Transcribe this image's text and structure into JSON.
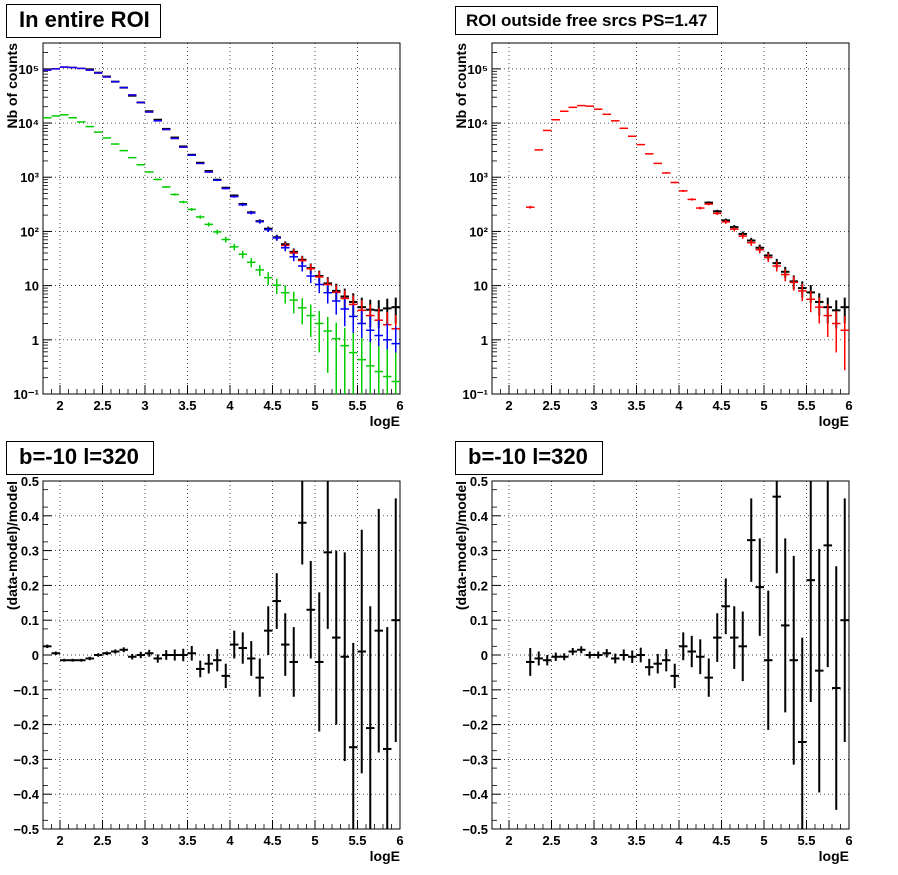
{
  "colors": {
    "data": "#000000",
    "model": "#ff0000",
    "blue": "#0000ff",
    "green": "#00cc00",
    "grid": "#000000",
    "background": "#ffffff"
  },
  "chart_data": [
    {
      "type": "scatter",
      "title": "In entire ROI",
      "xlabel": "logE",
      "ylabel": "Nb of counts",
      "xlim": [
        1.8,
        6.0
      ],
      "ylim": [
        0.1,
        300000
      ],
      "yscale": "log",
      "grid": true,
      "xticks": [
        "2",
        "2.5",
        "3",
        "3.5",
        "4",
        "4.5",
        "5",
        "5.5",
        "6"
      ],
      "yticks": [
        "10⁻¹",
        "1",
        "10",
        "10²",
        "10³",
        "10⁴",
        "10⁵"
      ],
      "x": [
        1.85,
        1.95,
        2.05,
        2.15,
        2.25,
        2.35,
        2.45,
        2.55,
        2.65,
        2.75,
        2.85,
        2.95,
        3.05,
        3.15,
        3.25,
        3.35,
        3.45,
        3.55,
        3.65,
        3.75,
        3.85,
        3.95,
        4.05,
        4.15,
        4.25,
        4.35,
        4.45,
        4.55,
        4.65,
        4.75,
        4.85,
        4.95,
        5.05,
        5.15,
        5.25,
        5.35,
        5.45,
        5.55,
        5.65,
        5.75,
        5.85,
        5.95
      ],
      "series": [
        {
          "values": [
            null,
            null,
            null,
            null,
            null,
            98000,
            85000,
            72000,
            58000,
            45000,
            32000,
            24000,
            16500,
            11500,
            7800,
            5400,
            3700,
            2600,
            1850,
            1300,
            900,
            640,
            460,
            320,
            225,
            155,
            112,
            78,
            58,
            42,
            30,
            21,
            15,
            11,
            8,
            6.3,
            5,
            4,
            3.6,
            3.5,
            3.8,
            4
          ]
        },
        {
          "values": [
            95000,
            100000,
            108000,
            106000,
            102000,
            95000,
            84000,
            71000,
            58000,
            45000,
            33000,
            24000,
            16000,
            11000,
            7600,
            5200,
            3600,
            2550,
            1800,
            1250,
            880,
            620,
            440,
            310,
            220,
            152,
            108,
            76,
            55,
            40,
            29,
            20.5,
            14.5,
            10.5,
            7.5,
            5.8,
            4.5,
            3.5,
            2.8,
            2.3,
            1.9,
            1.6
          ]
        },
        {
          "values": [
            95000,
            100000,
            108000,
            106000,
            102000,
            95000,
            84000,
            71000,
            58000,
            45000,
            33000,
            24000,
            16000,
            11000,
            7600,
            5200,
            3600,
            2550,
            1800,
            1250,
            880,
            620,
            440,
            310,
            220,
            152,
            108,
            76,
            50,
            34,
            23,
            15,
            10.5,
            7.4,
            5.2,
            3.7,
            2.7,
            2.0,
            1.5,
            1.2,
            1.0,
            0.85
          ]
        },
        {
          "values": [
            12500,
            13500,
            14200,
            12500,
            10500,
            8600,
            6800,
            5300,
            4100,
            3100,
            2300,
            1700,
            1250,
            910,
            660,
            480,
            350,
            255,
            185,
            135,
            98,
            71,
            52,
            38,
            27,
            19.5,
            14,
            10.2,
            7.4,
            5.4,
            3.9,
            2.8,
            2.0,
            1.45,
            1.05,
            0.78,
            0.58,
            0.43,
            0.33,
            0.26,
            0.21,
            0.17
          ]
        }
      ]
    },
    {
      "type": "scatter",
      "title": "ROI outside free srcs PS=1.47",
      "xlabel": "logE",
      "ylabel": "Nb of counts",
      "xlim": [
        1.8,
        6.0
      ],
      "ylim": [
        0.1,
        300000
      ],
      "yscale": "log",
      "grid": true,
      "xticks": [
        "2",
        "2.5",
        "3",
        "3.5",
        "4",
        "4.5",
        "5",
        "5.5",
        "6"
      ],
      "yticks": [
        "10⁻¹",
        "1",
        "10",
        "10²",
        "10³",
        "10⁴",
        "10⁵"
      ],
      "x": [
        2.25,
        2.35,
        2.45,
        2.55,
        2.65,
        2.75,
        2.85,
        2.95,
        3.05,
        3.15,
        3.25,
        3.35,
        3.45,
        3.55,
        3.65,
        3.75,
        3.85,
        3.95,
        4.05,
        4.15,
        4.25,
        4.35,
        4.45,
        4.55,
        4.65,
        4.75,
        4.85,
        4.95,
        5.05,
        5.15,
        5.25,
        5.35,
        5.45,
        5.55,
        5.65,
        5.75,
        5.85,
        5.95
      ],
      "series": [
        {
          "values": [
            null,
            null,
            null,
            null,
            null,
            null,
            null,
            null,
            null,
            null,
            null,
            null,
            null,
            null,
            null,
            null,
            null,
            null,
            null,
            null,
            null,
            340,
            235,
            160,
            120,
            90,
            68,
            50,
            36,
            26,
            18,
            12,
            9,
            7.5,
            5,
            4,
            3.5,
            4
          ]
        },
        {
          "values": [
            280,
            3200,
            7300,
            11500,
            16500,
            19500,
            21000,
            20500,
            18000,
            14500,
            11000,
            8000,
            5700,
            4000,
            2700,
            1800,
            1200,
            800,
            560,
            390,
            270,
            320,
            215,
            150,
            110,
            82,
            62,
            46,
            33,
            23,
            16,
            11.5,
            8,
            5.6,
            4,
            2.8,
            2,
            1.5
          ]
        }
      ]
    },
    {
      "type": "scatter",
      "title": "b=-10 l=320",
      "xlabel": "logE",
      "ylabel": "(data-model)/model",
      "xlim": [
        1.8,
        6.0
      ],
      "ylim": [
        -0.5,
        0.5
      ],
      "grid": true,
      "xticks": [
        "2",
        "2.5",
        "3",
        "3.5",
        "4",
        "4.5",
        "5",
        "5.5",
        "6"
      ],
      "yticks": [
        "−0.5",
        "−0.4",
        "−0.3",
        "−0.2",
        "−0.1",
        "0",
        "0.1",
        "0.2",
        "0.3",
        "0.4",
        "0.5"
      ],
      "x": [
        1.85,
        1.95,
        2.05,
        2.15,
        2.25,
        2.35,
        2.45,
        2.55,
        2.65,
        2.75,
        2.85,
        2.95,
        3.05,
        3.15,
        3.25,
        3.35,
        3.45,
        3.55,
        3.65,
        3.75,
        3.85,
        3.95,
        4.05,
        4.15,
        4.25,
        4.35,
        4.45,
        4.55,
        4.65,
        4.75,
        4.85,
        4.95,
        5.05,
        5.15,
        5.25,
        5.35,
        5.45,
        5.55,
        5.65,
        5.75,
        5.85,
        5.95
      ],
      "series": [
        {
          "values": [
            0.025,
            0.005,
            -0.015,
            -0.015,
            -0.015,
            -0.01,
            0.0,
            0.005,
            0.01,
            0.015,
            -0.005,
            0.0,
            0.005,
            -0.01,
            0.0,
            0.0,
            0.0,
            0.005,
            -0.04,
            -0.025,
            -0.015,
            -0.06,
            0.03,
            0.02,
            -0.01,
            -0.065,
            0.07,
            0.155,
            0.03,
            -0.02,
            0.38,
            0.13,
            -0.02,
            0.295,
            0.05,
            -0.005,
            -0.265,
            0.01,
            -0.21,
            0.07,
            -0.27,
            0.1
          ],
          "errors": [
            0.005,
            0.005,
            0.004,
            0.004,
            0.004,
            0.005,
            0.005,
            0.005,
            0.006,
            0.007,
            0.008,
            0.009,
            0.01,
            0.012,
            0.014,
            0.016,
            0.018,
            0.021,
            0.024,
            0.028,
            0.032,
            0.035,
            0.04,
            0.045,
            0.05,
            0.055,
            0.07,
            0.08,
            0.09,
            0.1,
            0.12,
            0.14,
            0.2,
            0.22,
            0.25,
            0.3,
            0.3,
            0.35,
            0.35,
            0.35,
            0.35,
            0.35
          ]
        }
      ]
    },
    {
      "type": "scatter",
      "title": "b=-10 l=320",
      "xlabel": "logE",
      "ylabel": "(data-model)/model",
      "xlim": [
        1.8,
        6.0
      ],
      "ylim": [
        -0.5,
        0.5
      ],
      "grid": true,
      "xticks": [
        "2",
        "2.5",
        "3",
        "3.5",
        "4",
        "4.5",
        "5",
        "5.5",
        "6"
      ],
      "yticks": [
        "−0.5",
        "−0.4",
        "−0.3",
        "−0.2",
        "−0.1",
        "0",
        "0.1",
        "0.2",
        "0.3",
        "0.4",
        "0.5"
      ],
      "x": [
        2.25,
        2.35,
        2.45,
        2.55,
        2.65,
        2.75,
        2.85,
        2.95,
        3.05,
        3.15,
        3.25,
        3.35,
        3.45,
        3.55,
        3.65,
        3.75,
        3.85,
        3.95,
        4.05,
        4.15,
        4.25,
        4.35,
        4.45,
        4.55,
        4.65,
        4.75,
        4.85,
        4.95,
        5.05,
        5.15,
        5.25,
        5.35,
        5.45,
        5.55,
        5.65,
        5.75,
        5.85,
        5.95
      ],
      "series": [
        {
          "values": [
            -0.02,
            -0.01,
            -0.015,
            -0.005,
            -0.005,
            0.01,
            0.015,
            0.0,
            0.0,
            0.005,
            -0.01,
            0.0,
            -0.005,
            0.0,
            -0.035,
            -0.025,
            -0.015,
            -0.06,
            0.025,
            0.01,
            -0.005,
            -0.065,
            0.05,
            0.14,
            0.05,
            0.025,
            0.33,
            0.195,
            -0.015,
            0.455,
            0.085,
            -0.015,
            -0.25,
            0.215,
            -0.045,
            0.315,
            -0.095,
            0.1
          ],
          "errors": [
            0.04,
            0.02,
            0.015,
            0.012,
            0.01,
            0.01,
            0.01,
            0.01,
            0.01,
            0.012,
            0.014,
            0.016,
            0.018,
            0.021,
            0.024,
            0.028,
            0.032,
            0.035,
            0.04,
            0.045,
            0.05,
            0.055,
            0.07,
            0.08,
            0.09,
            0.1,
            0.12,
            0.14,
            0.2,
            0.22,
            0.25,
            0.3,
            0.3,
            0.35,
            0.35,
            0.35,
            0.35,
            0.35
          ]
        }
      ]
    }
  ]
}
